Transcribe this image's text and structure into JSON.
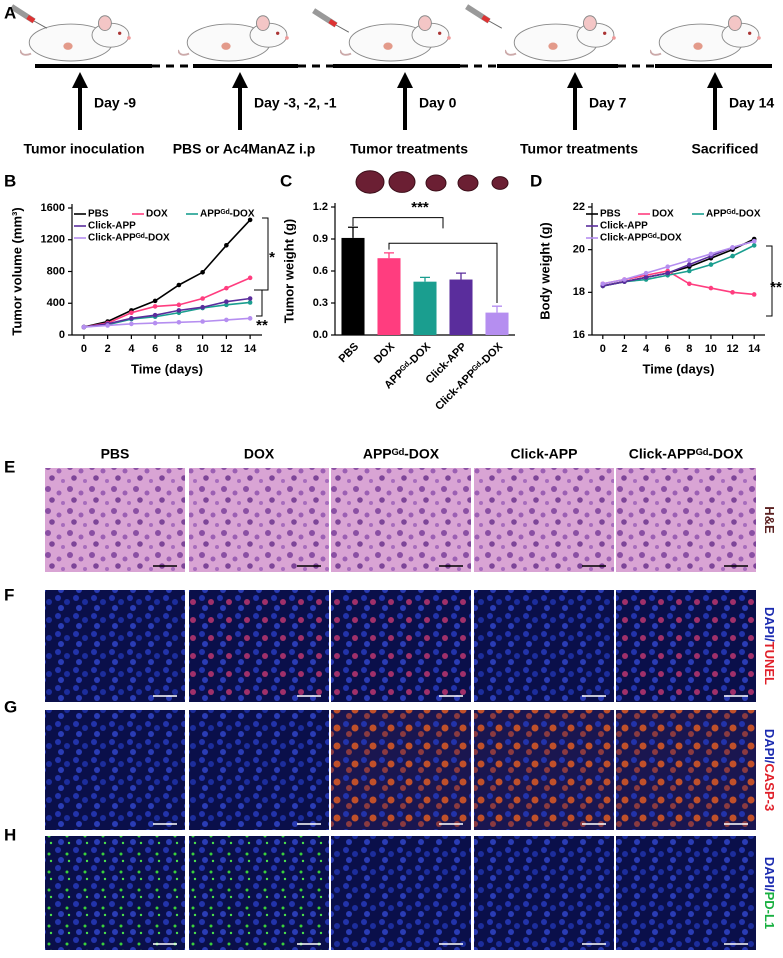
{
  "panel_labels": [
    "A",
    "B",
    "C",
    "D",
    "E",
    "F",
    "G",
    "H"
  ],
  "timeline": [
    {
      "day": "Day -9",
      "event": "Tumor inoculation"
    },
    {
      "day": "Day -3, -2, -1",
      "event": "PBS or Ac4ManAZ i.p"
    },
    {
      "day": "Day 0",
      "event": "Tumor treatments"
    },
    {
      "day": "Day 7",
      "event": "Tumor treatments"
    },
    {
      "day": "Day 14",
      "event": "Sacrificed"
    }
  ],
  "chart_data": [
    {
      "type": "line",
      "x_label": "Time (days)",
      "y_label": "Tumor volume (mm³)",
      "x": [
        0,
        2,
        4,
        6,
        8,
        10,
        12,
        14
      ],
      "xlim": [
        -1,
        15
      ],
      "xticks": [
        0,
        2,
        4,
        6,
        8,
        10,
        12,
        14
      ],
      "ylim": [
        0,
        1600
      ],
      "yticks": [
        0,
        400,
        800,
        1200,
        1600
      ],
      "series": [
        {
          "name": "PBS",
          "color": "#000000",
          "values": [
            100,
            170,
            310,
            430,
            630,
            790,
            1130,
            1450
          ]
        },
        {
          "name": "DOX",
          "color": "#ff3d7f",
          "values": [
            100,
            150,
            280,
            360,
            380,
            460,
            590,
            720
          ]
        },
        {
          "name": "APPᴳᵈ-DOX",
          "color": "#1a9e8f",
          "values": [
            100,
            130,
            200,
            230,
            280,
            340,
            380,
            410
          ]
        },
        {
          "name": "Click-APP",
          "color": "#5a2d9c",
          "values": [
            100,
            140,
            210,
            250,
            310,
            350,
            420,
            460
          ]
        },
        {
          "name": "Click-APPᴳᵈ-DOX",
          "color": "#b58ef0",
          "values": [
            100,
            120,
            140,
            150,
            160,
            170,
            190,
            210
          ]
        }
      ],
      "annotations": [
        "*",
        "**"
      ]
    },
    {
      "type": "bar",
      "y_label": "Tumor weight (g)",
      "categories": [
        "PBS",
        "DOX",
        "APPᴳᵈ-DOX",
        "Click-APP",
        "Click-APPᴳᵈ-DOX"
      ],
      "values": [
        0.91,
        0.72,
        0.5,
        0.52,
        0.21
      ],
      "errors": [
        0.1,
        0.05,
        0.04,
        0.06,
        0.06
      ],
      "colors": [
        "#000000",
        "#ff3d7f",
        "#1a9e8f",
        "#5a2d9c",
        "#b58ef0"
      ],
      "ylim": [
        0,
        1.2
      ],
      "yticks": [
        {
          "value": 0,
          "label": "0.0"
        },
        0.3,
        0.6,
        0.9,
        1.2
      ],
      "annotations": [
        "***"
      ]
    },
    {
      "type": "line",
      "x_label": "Time (days)",
      "y_label": "Body weight (g)",
      "x": [
        0,
        2,
        4,
        6,
        8,
        10,
        12,
        14
      ],
      "xlim": [
        -1,
        15
      ],
      "xticks": [
        0,
        2,
        4,
        6,
        8,
        10,
        12,
        14
      ],
      "ylim": [
        16,
        22
      ],
      "yticks": [
        16,
        18,
        20,
        22
      ],
      "series": [
        {
          "name": "PBS",
          "color": "#000000",
          "values": [
            18.3,
            18.5,
            18.7,
            18.9,
            19.2,
            19.6,
            20.0,
            20.5
          ]
        },
        {
          "name": "DOX",
          "color": "#ff3d7f",
          "values": [
            18.4,
            18.6,
            18.8,
            19.0,
            18.4,
            18.2,
            18.0,
            17.9
          ]
        },
        {
          "name": "APPᴳᵈ-DOX",
          "color": "#1a9e8f",
          "values": [
            18.3,
            18.5,
            18.6,
            18.8,
            19.0,
            19.3,
            19.7,
            20.2
          ]
        },
        {
          "name": "Click-APP",
          "color": "#5a2d9c",
          "values": [
            18.3,
            18.5,
            18.7,
            18.9,
            19.3,
            19.7,
            20.1,
            20.4
          ]
        },
        {
          "name": "Click-APPᴳᵈ-DOX",
          "color": "#b58ef0",
          "values": [
            18.4,
            18.6,
            18.9,
            19.2,
            19.5,
            19.8,
            20.1,
            20.4
          ]
        }
      ],
      "annotations": [
        "**"
      ]
    }
  ],
  "micrographs": {
    "columns": [
      "PBS",
      "DOX",
      "APPᴳᵈ-DOX",
      "Click-APP",
      "Click-APPᴳᵈ-DOX"
    ],
    "rows": [
      {
        "label": "H&E"
      },
      {
        "label": "DAPI/",
        "marker": "TUNEL"
      },
      {
        "label": "DAPI/",
        "marker": "CASP-3"
      },
      {
        "label": "DAPI/",
        "marker": "PD-L1"
      }
    ]
  }
}
